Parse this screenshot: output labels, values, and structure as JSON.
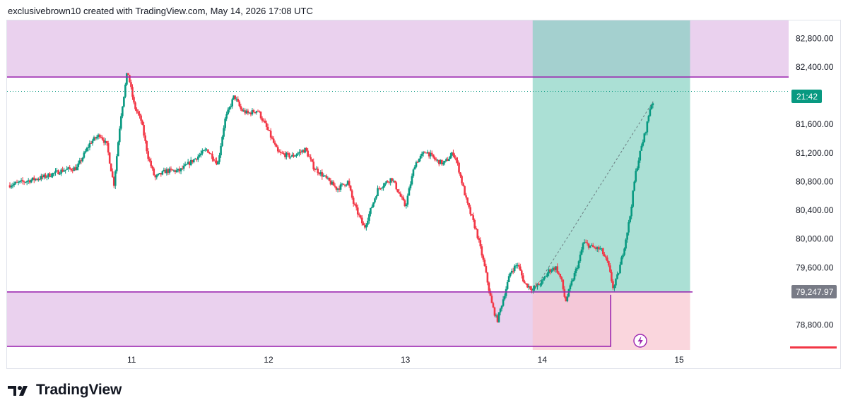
{
  "header": {
    "text": "exclusivebrown10 created with TradingView.com, May 14, 2026 17:08 UTC"
  },
  "brand": {
    "name": "TradingView"
  },
  "price_tags": {
    "last_label": "21:42",
    "position_price": "79,247.97"
  },
  "icons": {
    "bolt": "lightning-icon",
    "logo": "tradingview-logo-icon"
  },
  "colors": {
    "up": "#089981",
    "down": "#f23645",
    "zone": "#e1bee7",
    "zone_line": "#9c27b0",
    "profit": "#7ecfbf",
    "loss": "#f8c5ce",
    "last_tag": "#089981",
    "pos_tag": "#787b86",
    "axis_marker": "#f23645"
  },
  "chart_data": {
    "type": "candlestick",
    "y_ticks": [
      "82,800.00",
      "82,400.00",
      "81,600.00",
      "81,200.00",
      "80,800.00",
      "80,400.00",
      "80,000.00",
      "79,600.00",
      "78,800.00"
    ],
    "y_tick_values": [
      82800,
      82400,
      81600,
      81200,
      80800,
      80400,
      80000,
      79600,
      78800
    ],
    "x_ticks": [
      "11",
      "12",
      "13",
      "14",
      "15"
    ],
    "ylim": [
      78450,
      83050
    ],
    "xlim": [
      10.09,
      15.8
    ],
    "close_path": [
      [
        10.1,
        80750
      ],
      [
        10.35,
        80860
      ],
      [
        10.5,
        80960
      ],
      [
        10.6,
        80990
      ],
      [
        10.7,
        81350
      ],
      [
        10.77,
        81460
      ],
      [
        10.82,
        81300
      ],
      [
        10.87,
        80750
      ],
      [
        10.92,
        81700
      ],
      [
        10.97,
        82350
      ],
      [
        11.02,
        81850
      ],
      [
        11.07,
        81650
      ],
      [
        11.12,
        81150
      ],
      [
        11.17,
        80850
      ],
      [
        11.25,
        80950
      ],
      [
        11.35,
        80950
      ],
      [
        11.45,
        81100
      ],
      [
        11.55,
        81250
      ],
      [
        11.63,
        81050
      ],
      [
        11.68,
        81650
      ],
      [
        11.75,
        82000
      ],
      [
        11.8,
        81800
      ],
      [
        11.85,
        81750
      ],
      [
        11.92,
        81800
      ],
      [
        12.0,
        81500
      ],
      [
        12.07,
        81200
      ],
      [
        12.17,
        81150
      ],
      [
        12.27,
        81250
      ],
      [
        12.33,
        81000
      ],
      [
        12.4,
        80880
      ],
      [
        12.5,
        80700
      ],
      [
        12.58,
        80800
      ],
      [
        12.62,
        80500
      ],
      [
        12.7,
        80150
      ],
      [
        12.8,
        80700
      ],
      [
        12.9,
        80850
      ],
      [
        13.0,
        80450
      ],
      [
        13.07,
        81050
      ],
      [
        13.15,
        81230
      ],
      [
        13.22,
        81100
      ],
      [
        13.28,
        81050
      ],
      [
        13.35,
        81200
      ],
      [
        13.38,
        81050
      ],
      [
        13.45,
        80500
      ],
      [
        13.52,
        80100
      ],
      [
        13.58,
        79600
      ],
      [
        13.63,
        79100
      ],
      [
        13.67,
        78850
      ],
      [
        13.72,
        79200
      ],
      [
        13.77,
        79550
      ],
      [
        13.82,
        79650
      ],
      [
        13.87,
        79380
      ],
      [
        13.93,
        79300
      ],
      [
        14.0,
        79400
      ],
      [
        14.05,
        79560
      ],
      [
        14.1,
        79600
      ],
      [
        14.14,
        79420
      ],
      [
        14.17,
        79120
      ],
      [
        14.22,
        79420
      ],
      [
        14.27,
        79700
      ],
      [
        14.3,
        79950
      ],
      [
        14.37,
        79880
      ],
      [
        14.43,
        79850
      ],
      [
        14.48,
        79650
      ],
      [
        14.52,
        79300
      ],
      [
        14.56,
        79550
      ],
      [
        14.6,
        79900
      ],
      [
        14.64,
        80300
      ],
      [
        14.68,
        80900
      ],
      [
        14.72,
        81250
      ],
      [
        14.76,
        81550
      ],
      [
        14.79,
        81850
      ],
      [
        14.81,
        81920
      ]
    ],
    "zones": [
      {
        "top": 83050,
        "bottom": 82260,
        "x_start": 10.09,
        "x_end": 15.8
      },
      {
        "top": 79260,
        "bottom": 78500,
        "x_start": 10.09,
        "x_end": 14.5
      }
    ],
    "position": {
      "x_start": 13.93,
      "x_end": 15.08,
      "entry": 79250,
      "target": 83050,
      "stop": 78450,
      "line_from": [
        13.93,
        79250
      ],
      "line_to": [
        14.81,
        81920
      ]
    },
    "last_price": 82060,
    "grid": false
  }
}
